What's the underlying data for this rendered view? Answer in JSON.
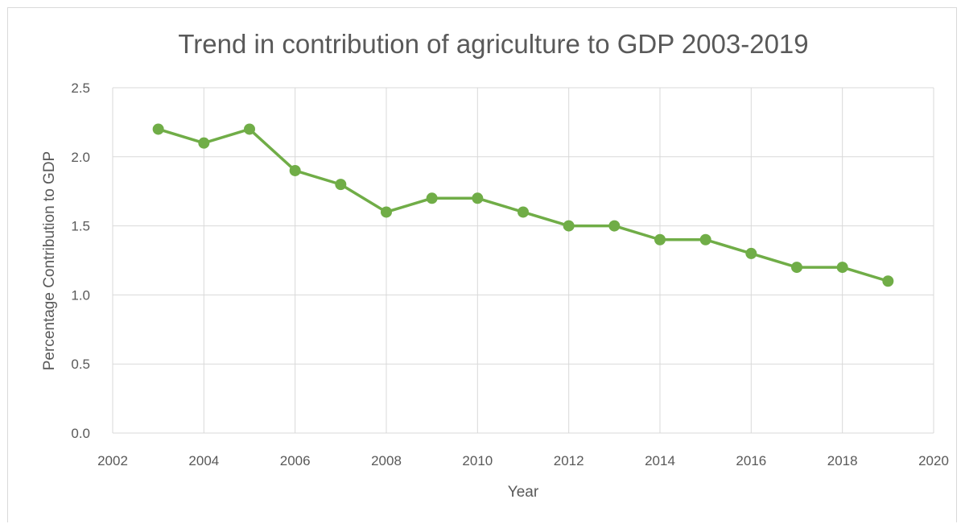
{
  "chart_data": {
    "type": "line",
    "title": "Trend in contribution of agriculture to GDP 2003-2019",
    "xlabel": "Year",
    "ylabel": "Percentage Contribution to GDP",
    "xlim": [
      2002,
      2020
    ],
    "ylim": [
      0,
      2.5
    ],
    "x_ticks": [
      2002,
      2004,
      2006,
      2008,
      2010,
      2012,
      2014,
      2016,
      2018,
      2020
    ],
    "y_ticks": [
      0,
      0.5,
      1.0,
      1.5,
      2.0,
      2.5
    ],
    "y_tick_labels": [
      "0.0",
      "0.5",
      "1.0",
      "1.5",
      "2.0",
      "2.5"
    ],
    "grid": true,
    "legend": false,
    "series": [
      {
        "color": "#70ad47",
        "x": [
          2003,
          2004,
          2005,
          2006,
          2007,
          2008,
          2009,
          2010,
          2011,
          2012,
          2013,
          2014,
          2015,
          2016,
          2017,
          2018,
          2019
        ],
        "y": [
          2.2,
          2.1,
          2.2,
          1.9,
          1.8,
          1.6,
          1.7,
          1.7,
          1.6,
          1.5,
          1.5,
          1.4,
          1.4,
          1.3,
          1.2,
          1.2,
          1.1
        ]
      }
    ],
    "colors": {
      "line": "#70ad47",
      "grid": "#d9d9d9",
      "text": "#595959"
    }
  }
}
